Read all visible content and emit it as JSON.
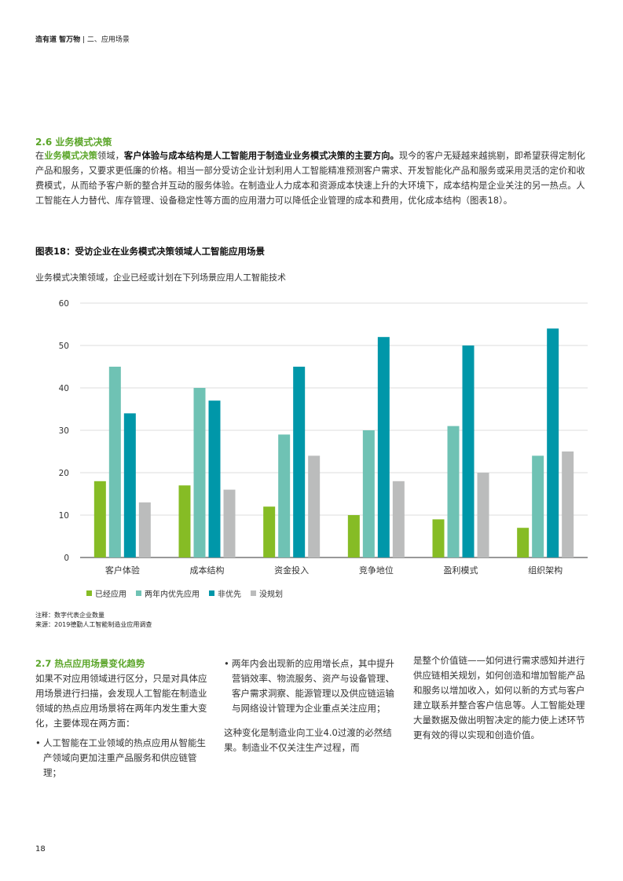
{
  "header": {
    "brand": "造有道 智万物",
    "section": "二、应用场景"
  },
  "section": {
    "title": "2.6 业务模式决策",
    "intro_pre": "在",
    "intro_hl": "业务模式决策",
    "intro_mid": "领域，",
    "intro_bold": "客户体验与成本结构是人工智能用于制造业业务模式决策的主要方向。",
    "intro_rest": "现今的客户无疑越来越挑剔，即希望获得定制化产品和服务，又要求更低廉的价格。相当一部分受访企业计划利用人工智能精准预测客户需求、开发智能化产品和服务或采用灵活的定价和收费模式，从而给予客户新的整合并互动的服务体验。在制造业人力成本和资源成本快速上升的大环境下，成本结构是企业关注的另一热点。人工智能在人力替代、库存管理、设备稳定性等方面的应用潜力可以降低企业管理的成本和费用，优化成本结构（图表18）。"
  },
  "figure": {
    "title": "图表18：受访企业在业务模式决策领域人工智能应用场景",
    "subtitle": "业务模式决策领域，企业已经或计划在下列场景应用人工智能技术",
    "note": "注释：数字代表企业数量",
    "source": "来源：2019德勤人工智能制造业应用调查"
  },
  "chart_data": {
    "type": "bar",
    "categories": [
      "客户体验",
      "成本结构",
      "资金投入",
      "竞争地位",
      "盈利模式",
      "组织架构"
    ],
    "series": [
      {
        "name": "已经应用",
        "color": "#86bc25",
        "values": [
          18,
          17,
          12,
          10,
          9,
          7
        ]
      },
      {
        "name": "两年内优先应用",
        "color": "#6fc2b4",
        "values": [
          45,
          40,
          29,
          30,
          31,
          24
        ]
      },
      {
        "name": "非优先",
        "color": "#0097a9",
        "values": [
          34,
          37,
          45,
          52,
          50,
          54
        ]
      },
      {
        "name": "没规划",
        "color": "#bbbcbc",
        "values": [
          13,
          16,
          24,
          18,
          20,
          25
        ]
      }
    ],
    "yticks": [
      "0",
      "10",
      "20",
      "30",
      "40",
      "50",
      "60"
    ],
    "ylim": [
      0,
      60
    ],
    "grid": true,
    "legend": "bottom-left"
  },
  "section2": {
    "title": "2.7 热点应用场景变化趋势",
    "p1": "如果不对应用领域进行区分，只是对具体应用场景进行扫描，会发现人工智能在制造业领域的热点应用场景将在两年内发生重大变化，主要体现在两方面：",
    "b1": "人工智能在工业领域的热点应用从智能生产领域向更加注重产品服务和供应链管理；",
    "b2": "两年内会出现新的应用增长点，其中提升营销效率、物流服务、资产与设备管理、客户需求洞察、能源管理以及供应链运输与网络设计管理为企业重点关注应用；",
    "p2": "这种变化是制造业向工业4.0过渡的必然结果。制造业不仅关注生产过程，而",
    "p3": "是整个价值链——如何进行需求感知并进行供应链相关规划，如何创造和增加智能产品和服务以增加收入，如何以新的方式与客户建立联系并整合客户信息等。人工智能处理大量数据及做出明智决定的能力使上述环节更有效的得以实现和创造价值。"
  },
  "page_number": "18"
}
